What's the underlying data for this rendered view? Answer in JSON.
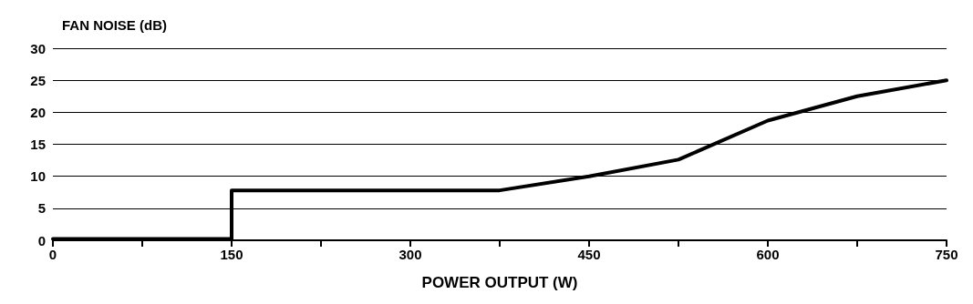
{
  "chart_data": {
    "type": "line",
    "xlabel": "POWER OUTPUT (W)",
    "ylabel": "FAN NOISE (dB)",
    "x": [
      0,
      150,
      150,
      375,
      450,
      525,
      600,
      675,
      750
    ],
    "series": [
      {
        "color": "#000000",
        "values": [
          0.2,
          0.2,
          7.8,
          7.8,
          10,
          12.6,
          18.7,
          22.5,
          25
        ]
      }
    ],
    "xlim": [
      0,
      750
    ],
    "xticks": [
      0,
      {
        "value": 75,
        "label": null
      },
      150,
      {
        "value": 225,
        "label": null
      },
      300,
      {
        "value": 375,
        "label": null
      },
      450,
      {
        "value": 525,
        "label": null
      },
      600,
      {
        "value": 675,
        "label": null
      },
      750
    ],
    "ylim": [
      0,
      30
    ],
    "yticks": [
      0,
      5,
      10,
      15,
      20,
      25,
      30
    ],
    "grid": "y",
    "marker": "none",
    "line_style": "solid"
  }
}
